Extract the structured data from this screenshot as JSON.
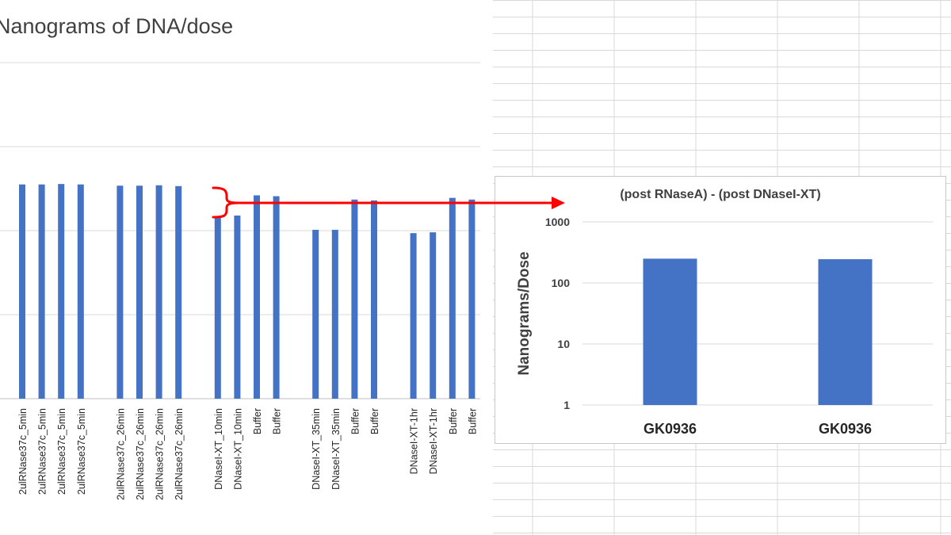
{
  "chart_data": [
    {
      "type": "bar",
      "title": "Nanograms of DNA/dose",
      "categories": [
        "2ulRNase37c_5min",
        "2ulRNase37c_5min",
        "2ulRNase37c_5min",
        "2ulRNase37c_5min",
        "2ulRNase37c_26min",
        "2ulRNase37c_26min",
        "2ulRNase37c_26min",
        "2ulRNase37c_26min",
        "DNaseI-XT_10min",
        "DNaseI-XT_10min",
        "Buffer",
        "Buffer",
        "DNaseI-XT_35min",
        "DNaseI-XT_35min",
        "Buffer",
        "Buffer",
        "DNaseI-XT-1hr",
        "DNaseI-XT-1hr",
        "Buffer",
        "Buffer"
      ],
      "groups": [
        4,
        4,
        4,
        4,
        4
      ],
      "values": [
        2.55,
        2.55,
        2.555,
        2.55,
        2.535,
        2.535,
        2.54,
        2.53,
        2.17,
        2.18,
        2.42,
        2.41,
        2.01,
        2.01,
        2.37,
        2.36,
        1.97,
        1.98,
        2.39,
        2.37
      ],
      "ylim": [
        0,
        4
      ],
      "grid": true,
      "bar_color": "#4472c4",
      "annotation": {
        "type": "bracket-arrow",
        "color": "#ff0000",
        "from": "DNaseI-XT_10min",
        "to": "(post RNaseA) - (post DNaseI-XT)"
      }
    },
    {
      "type": "bar",
      "title": "(post RNaseA) - (post DNaseI-XT)",
      "categories": [
        "GK0936",
        "GK0936"
      ],
      "values": [
        250,
        245
      ],
      "ylabel": "Nanograms/Dose",
      "yscale": "log",
      "ylim": [
        1,
        1000
      ],
      "yticks": [
        "1",
        "10",
        "100",
        "1000"
      ],
      "grid": true,
      "bar_color": "#4472c4"
    }
  ]
}
